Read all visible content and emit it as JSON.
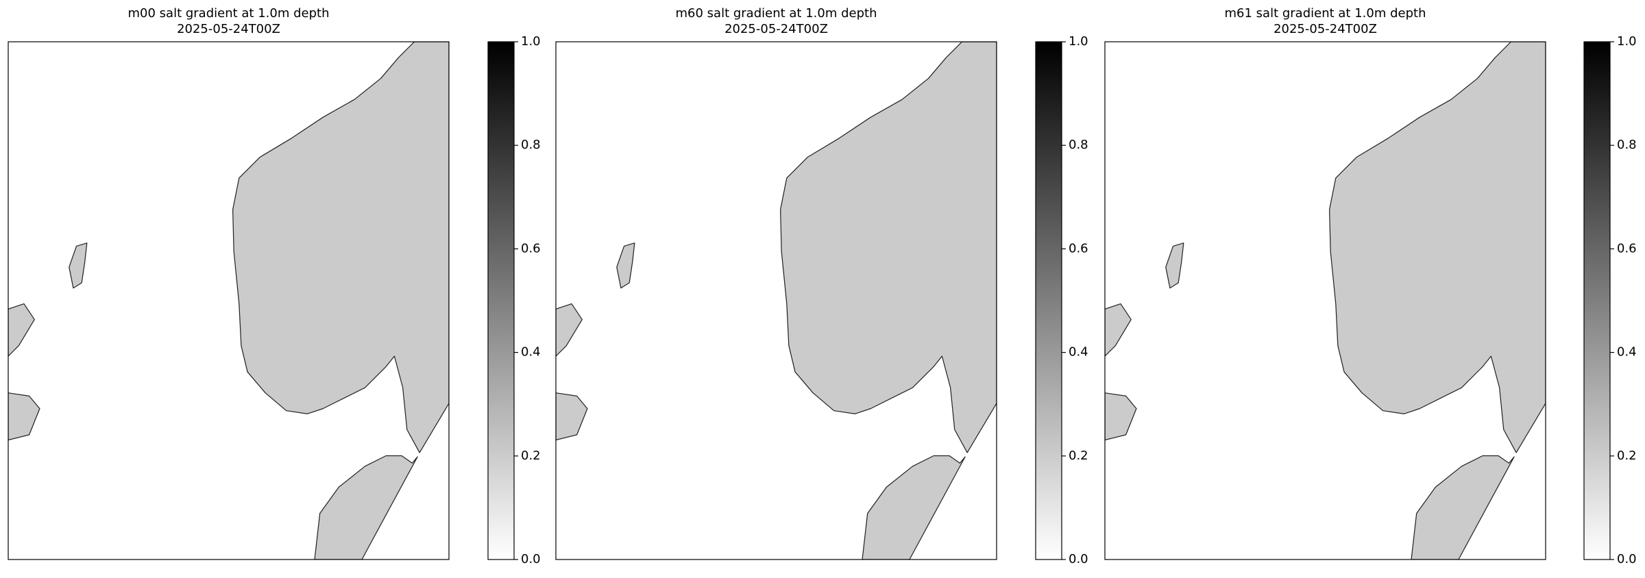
{
  "panels": [
    {
      "title": "m00 salt gradient at 1.0m depth",
      "subtitle": "2025-05-24T00Z",
      "clim": [
        0,
        1
      ],
      "ticks": [
        {
          "value": 0,
          "label": "0.0"
        },
        {
          "value": 0.2,
          "label": "0.2"
        },
        {
          "value": 0.4,
          "label": "0.4"
        },
        {
          "value": 0.6,
          "label": "0.6"
        },
        {
          "value": 0.8,
          "label": "0.8"
        },
        {
          "value": 1,
          "label": "1.0"
        }
      ]
    },
    {
      "title": "m60 salt gradient at 1.0m depth",
      "subtitle": "2025-05-24T00Z",
      "clim": [
        0,
        1
      ],
      "ticks": [
        {
          "value": 0,
          "label": "0.0"
        },
        {
          "value": 0.2,
          "label": "0.2"
        },
        {
          "value": 0.4,
          "label": "0.4"
        },
        {
          "value": 0.6,
          "label": "0.6"
        },
        {
          "value": 0.8,
          "label": "0.8"
        },
        {
          "value": 1,
          "label": "1.0"
        }
      ]
    },
    {
      "title": "m61 salt gradient at 1.0m depth",
      "subtitle": "2025-05-24T00Z",
      "clim": [
        0,
        1
      ],
      "ticks": [
        {
          "value": 0,
          "label": "0.0"
        },
        {
          "value": 0.2,
          "label": "0.2"
        },
        {
          "value": 0.4,
          "label": "0.4"
        },
        {
          "value": 0.6,
          "label": "0.6"
        },
        {
          "value": 0.8,
          "label": "0.8"
        },
        {
          "value": 1,
          "label": "1.0"
        }
      ]
    }
  ]
}
